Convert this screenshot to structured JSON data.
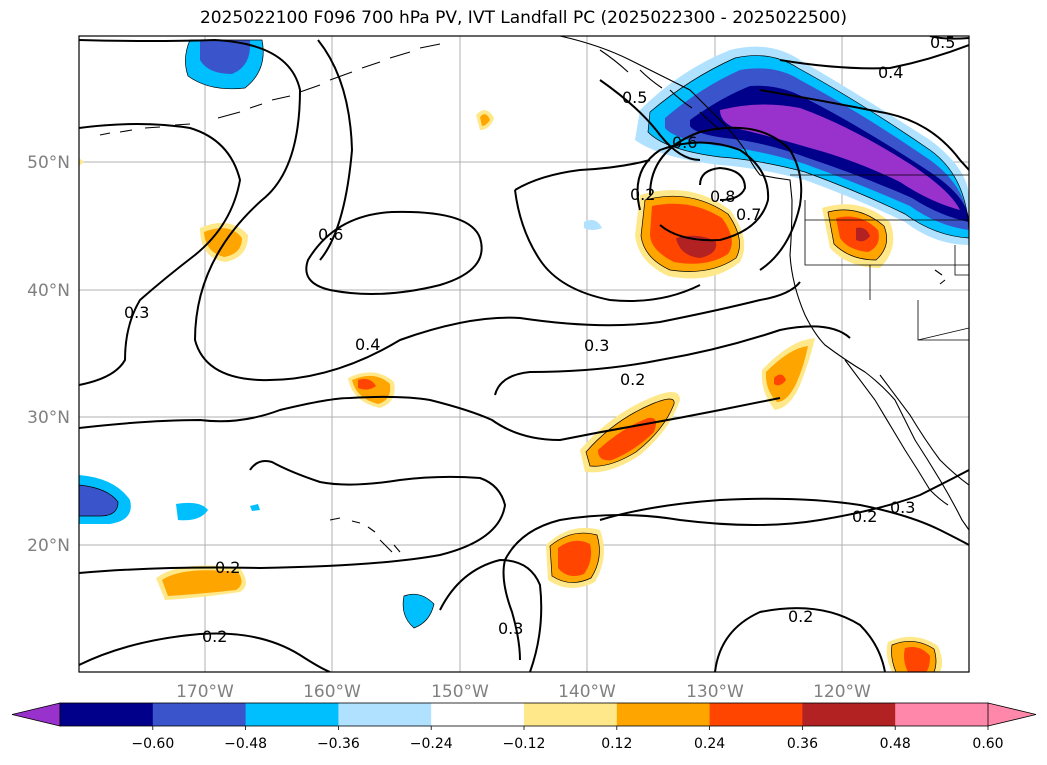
{
  "title": "2025022100 F096 700 hPa PV, IVT Landfall PC (2025022300 - 2025022500)",
  "map": {
    "lat_ticks": [
      "50°N",
      "40°N",
      "30°N",
      "20°N"
    ],
    "lon_ticks": [
      "170°W",
      "160°W",
      "150°W",
      "140°W",
      "130°W",
      "120°W"
    ],
    "contour_labels": [
      "0.5",
      "0.4",
      "0.5",
      "0.6",
      "0.8",
      "0.7",
      "0.6",
      "0.3",
      "0.4",
      "0.3",
      "0.2",
      "0.2",
      "0.2",
      "0.3",
      "0.2",
      "0.3",
      "0.2",
      "0.2"
    ]
  },
  "colorbar": {
    "tick_labels": [
      "−0.60",
      "−0.48",
      "−0.36",
      "−0.24",
      "−0.12",
      "0.12",
      "0.24",
      "0.36",
      "0.48",
      "0.60"
    ],
    "colors": [
      "#9932cc",
      "#00008b",
      "#3a55cc",
      "#00bfff",
      "#b0e2ff",
      "#ffffff",
      "#ffe88a",
      "#ffa500",
      "#ff4500",
      "#b22222",
      "#ff88aa",
      "#ff88aa"
    ],
    "extend": "both"
  }
}
